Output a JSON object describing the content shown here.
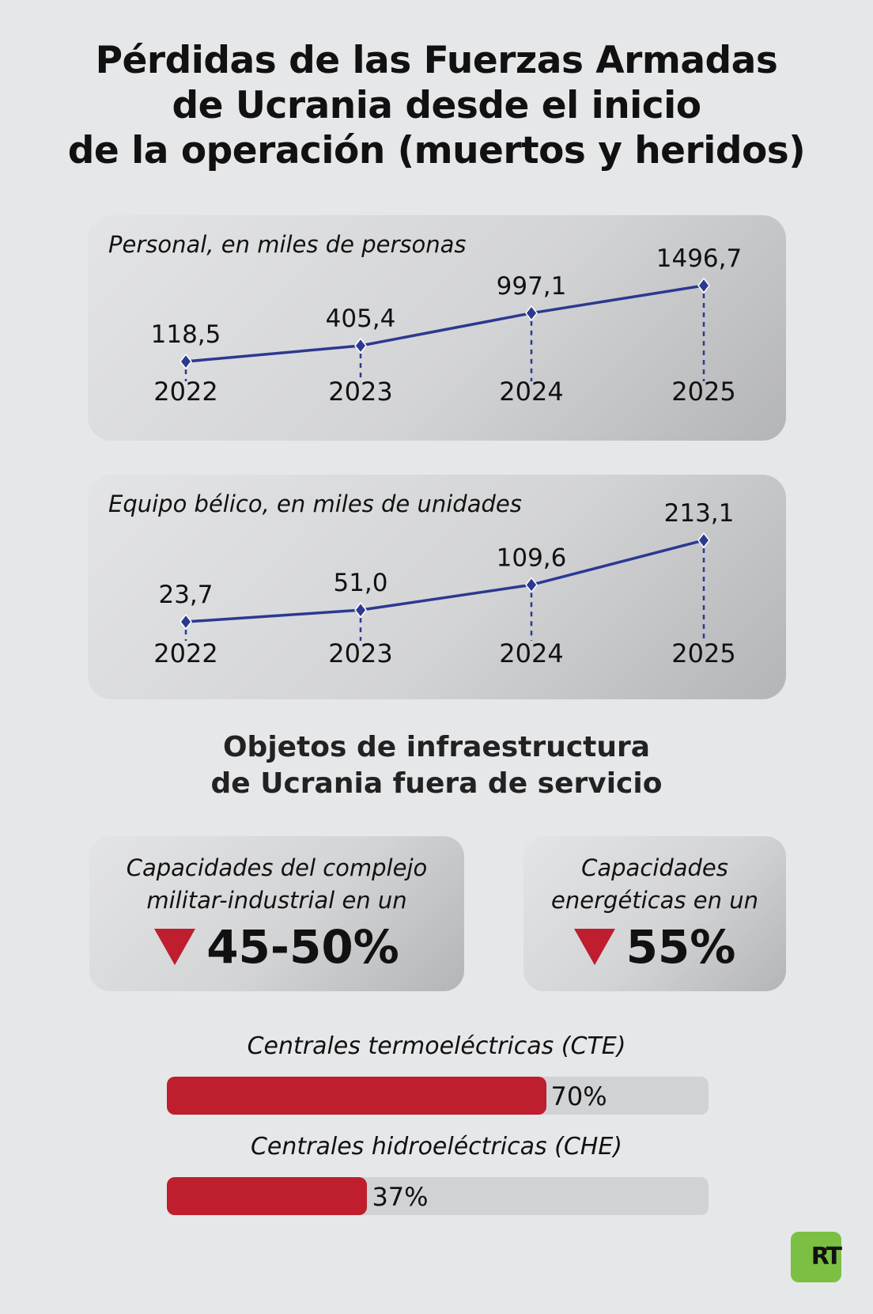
{
  "title": [
    "Pérdidas de las Fuerzas Armadas",
    "de Ucrania desde el inicio",
    "de la operación (muertos y heridos)"
  ],
  "chart_data": [
    {
      "type": "line",
      "title": "Personal, en miles de personas",
      "categories": [
        "2022",
        "2023",
        "2024",
        "2025"
      ],
      "values": [
        118.5,
        405.4,
        997.1,
        1496.7
      ],
      "labels": [
        "118,5",
        "405,4",
        "997,1",
        "1496,7"
      ]
    },
    {
      "type": "line",
      "title": "Equipo bélico, en miles de unidades",
      "categories": [
        "2022",
        "2023",
        "2024",
        "2025"
      ],
      "values": [
        23.7,
        51.0,
        109.6,
        213.1
      ],
      "labels": [
        "23,7",
        "51,0",
        "109,6",
        "213,1"
      ]
    }
  ],
  "subtitle": [
    "Objetos de infraestructura",
    "de Ucrania fuera de servicio"
  ],
  "boxes": [
    {
      "line1": "Capacidades del complejo",
      "line2": "militar-industrial en un",
      "value": "45-50%"
    },
    {
      "line1": "Capacidades",
      "line2": "energéticas en un",
      "value": "55%"
    }
  ],
  "bars": [
    {
      "label": "Centrales termoeléctricas (CTE)",
      "value": 70,
      "value_label": "70%"
    },
    {
      "label": "Centrales hidroeléctricas (CHE)",
      "value": 37,
      "value_label": "37%"
    }
  ],
  "logo": "RT",
  "colors": {
    "line": "#2b3990",
    "accent": "#be1e2d",
    "logo": "#7bc043"
  }
}
